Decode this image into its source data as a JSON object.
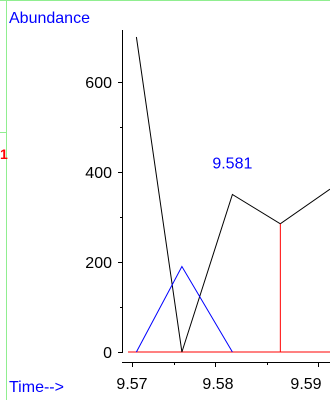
{
  "chart_data": {
    "type": "line",
    "ylabel": "Abundance",
    "xlabel": "Time-->",
    "x_ticks": [
      "9.57",
      "9.58",
      "9.59"
    ],
    "y_ticks": [
      "0",
      "200",
      "400",
      "600"
    ],
    "xlim": [
      9.5687,
      9.5927
    ],
    "ylim": [
      0,
      700
    ],
    "series": [
      {
        "color": "#000000",
        "points": [
          [
            9.5697,
            700
          ],
          [
            9.5751,
            0
          ],
          [
            9.5811,
            350
          ],
          [
            9.5868,
            285
          ],
          [
            9.5927,
            362
          ]
        ]
      },
      {
        "color": "#0000ff",
        "points": [
          [
            9.5697,
            0
          ],
          [
            9.5751,
            190
          ],
          [
            9.5811,
            0
          ]
        ]
      }
    ],
    "baseline": {
      "color": "#ff0000",
      "value": 0
    },
    "peak_marker": {
      "x": 9.5868,
      "y": 285,
      "color": "#ff0000"
    },
    "annotation": {
      "text": "9.581",
      "x": 9.5811,
      "y": 350,
      "color": "#0000ff"
    },
    "left_marker": "1",
    "grid_color": "#90ee90"
  }
}
